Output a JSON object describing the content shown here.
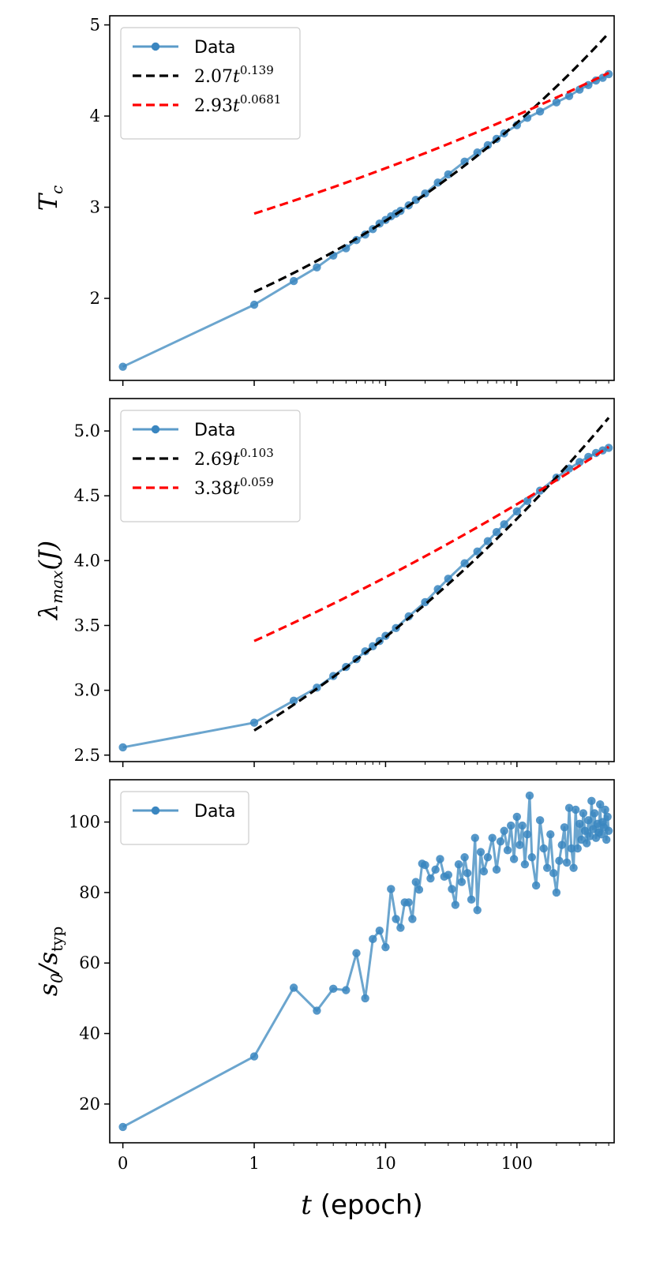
{
  "chart_data": [
    {
      "type": "line",
      "ylabel": "T_c",
      "ylabel_main": "T",
      "ylabel_sub": "c",
      "ylim": [
        1.1,
        5.1
      ],
      "yticks": [
        2,
        3,
        4,
        5
      ],
      "ytick_labels": [
        "2",
        "3",
        "4",
        "5"
      ],
      "legend_position": "top-left",
      "series": [
        {
          "name": "Data",
          "color": "#5b9bc9",
          "style": "line-marker",
          "x": [
            0,
            1,
            2,
            3,
            4,
            5,
            6,
            7,
            8,
            9,
            10,
            11,
            12,
            13,
            15,
            17,
            20,
            25,
            30,
            40,
            50,
            60,
            70,
            80,
            100,
            120,
            150,
            200,
            250,
            300,
            350,
            400,
            450,
            500
          ],
          "values": [
            1.25,
            1.93,
            2.19,
            2.34,
            2.47,
            2.55,
            2.64,
            2.7,
            2.76,
            2.82,
            2.86,
            2.9,
            2.93,
            2.96,
            3.02,
            3.08,
            3.15,
            3.27,
            3.36,
            3.5,
            3.6,
            3.68,
            3.75,
            3.81,
            3.9,
            3.98,
            4.05,
            4.15,
            4.22,
            4.29,
            4.34,
            4.39,
            4.42,
            4.46
          ]
        },
        {
          "name": "2.07t^{0.139}",
          "label_coef": "2.07",
          "label_var": "t",
          "label_exp": "0.139",
          "color": "#000000",
          "style": "dashed",
          "coef": 2.07,
          "exponent": 0.139,
          "x_range": [
            1,
            500
          ]
        },
        {
          "name": "2.93t^{0.0681}",
          "label_coef": "2.93",
          "label_var": "t",
          "label_exp": "0.0681",
          "color": "#ff0000",
          "style": "dashed",
          "coef": 2.93,
          "exponent": 0.0681,
          "x_range": [
            1,
            500
          ]
        }
      ]
    },
    {
      "type": "line",
      "ylabel": "λ_max(J)",
      "ylabel_main": "λ",
      "ylabel_sub": "max",
      "ylabel_rest": "(J)",
      "ylim": [
        2.45,
        5.25
      ],
      "yticks": [
        2.5,
        3.0,
        3.5,
        4.0,
        4.5,
        5.0
      ],
      "ytick_labels": [
        "2.5",
        "3.0",
        "3.5",
        "4.0",
        "4.5",
        "5.0"
      ],
      "legend_position": "top-left",
      "series": [
        {
          "name": "Data",
          "color": "#5b9bc9",
          "style": "line-marker",
          "x": [
            0,
            1,
            2,
            3,
            4,
            5,
            6,
            7,
            8,
            9,
            10,
            12,
            15,
            20,
            25,
            30,
            40,
            50,
            60,
            70,
            80,
            100,
            120,
            150,
            200,
            250,
            300,
            350,
            400,
            450,
            500
          ],
          "values": [
            2.56,
            2.75,
            2.92,
            3.02,
            3.11,
            3.18,
            3.24,
            3.3,
            3.34,
            3.38,
            3.42,
            3.48,
            3.57,
            3.68,
            3.78,
            3.86,
            3.98,
            4.07,
            4.15,
            4.22,
            4.28,
            4.38,
            4.46,
            4.54,
            4.64,
            4.71,
            4.76,
            4.8,
            4.83,
            4.85,
            4.87
          ]
        },
        {
          "name": "2.69t^{0.103}",
          "label_coef": "2.69",
          "label_var": "t",
          "label_exp": "0.103",
          "color": "#000000",
          "style": "dashed",
          "coef": 2.69,
          "exponent": 0.103,
          "x_range": [
            1,
            500
          ]
        },
        {
          "name": "3.38t^{0.059}",
          "label_coef": "3.38",
          "label_var": "t",
          "label_exp": "0.059",
          "color": "#ff0000",
          "style": "dashed",
          "coef": 3.38,
          "exponent": 0.059,
          "x_range": [
            1,
            500
          ]
        }
      ]
    },
    {
      "type": "line",
      "ylabel": "s_0/s_typ",
      "ylabel_main": "s",
      "ylabel_sub": "0",
      "ylabel_mid": "/s",
      "ylabel_sub2": "typ",
      "ylim": [
        9,
        112
      ],
      "yticks": [
        20,
        40,
        60,
        80,
        100
      ],
      "ytick_labels": [
        "20",
        "40",
        "60",
        "80",
        "100"
      ],
      "legend_position": "top-left",
      "series": [
        {
          "name": "Data",
          "color": "#5b9bc9",
          "style": "line-marker",
          "x": [
            0,
            1,
            2,
            3,
            4,
            5,
            6,
            7,
            8,
            9,
            10,
            11,
            12,
            13,
            14,
            15,
            16,
            17,
            18,
            19,
            20,
            22,
            24,
            26,
            28,
            30,
            32,
            34,
            36,
            38,
            40,
            42,
            45,
            48,
            50,
            53,
            56,
            60,
            65,
            70,
            75,
            80,
            85,
            90,
            95,
            100,
            105,
            110,
            115,
            120,
            125,
            130,
            140,
            150,
            160,
            170,
            180,
            190,
            200,
            210,
            220,
            230,
            240,
            250,
            260,
            270,
            280,
            290,
            300,
            310,
            320,
            330,
            340,
            350,
            360,
            370,
            380,
            390,
            400,
            410,
            420,
            430,
            440,
            450,
            460,
            470,
            480,
            490,
            500
          ],
          "values": [
            13.5,
            33.5,
            53,
            46.5,
            52.7,
            52.3,
            62.8,
            50,
            66.8,
            69.2,
            64.5,
            81,
            72.5,
            70,
            77.2,
            77.2,
            72.5,
            83,
            80.8,
            88.2,
            87.8,
            84,
            86.5,
            89.5,
            84.5,
            85,
            81,
            76.5,
            88,
            83,
            90,
            85.5,
            78,
            95.5,
            75,
            91.5,
            86,
            90,
            95.5,
            86.5,
            94.5,
            97.5,
            92,
            99,
            89.5,
            101.5,
            93.5,
            99,
            88,
            96.5,
            107.5,
            90,
            82,
            100.5,
            92.5,
            87,
            96.5,
            85.5,
            80,
            89,
            93.5,
            98.5,
            88.5,
            104,
            92.5,
            87,
            103.5,
            92.5,
            99.5,
            95,
            102.5,
            97.5,
            94,
            100.5,
            96,
            106,
            98,
            102.5,
            95.5,
            99.5,
            97,
            105,
            96.5,
            100,
            98.5,
            103.5,
            95,
            101.5,
            97.5
          ]
        }
      ]
    }
  ],
  "x_axis": {
    "scale": "symlog",
    "linthresh": 1,
    "xlim": [
      -0.1,
      550
    ],
    "ticks": [
      0,
      1,
      10,
      100
    ],
    "tick_labels": [
      "0",
      "1",
      "10",
      "100"
    ],
    "label_var": "t",
    "label_text": "(epoch)"
  }
}
